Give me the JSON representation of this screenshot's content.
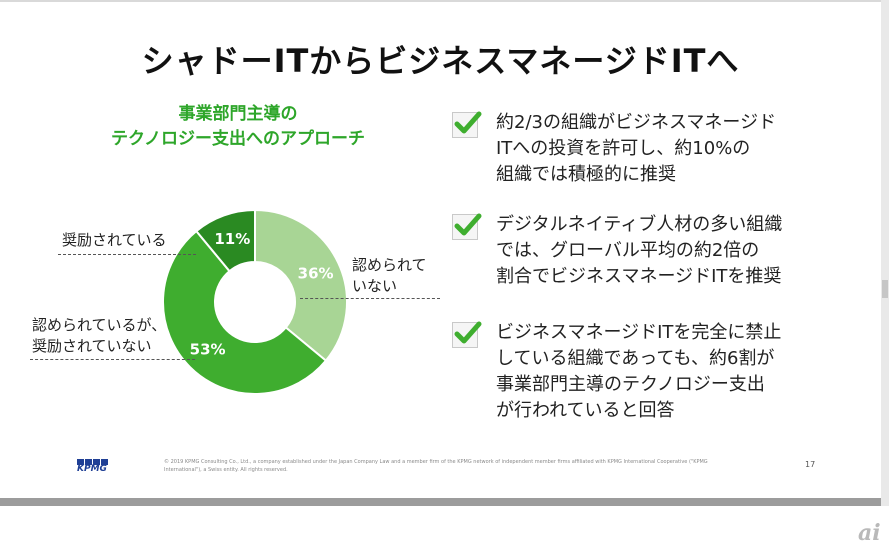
{
  "slide": {
    "title": "シャドーITからビジネスマネージドITへ",
    "chart_title_lines": [
      "事業部門主導の",
      "テクノロジー支出へのアプローチ"
    ]
  },
  "chart_data": {
    "type": "pie",
    "title": "事業部門主導の テクノロジー支出へのアプローチ",
    "donut": true,
    "slices": [
      {
        "name": "認められていない",
        "value": 36,
        "label": "36%",
        "color": "#a8d595"
      },
      {
        "name": "認められているが、奨励されていない",
        "value": 53,
        "label": "53%",
        "color": "#3fad2f"
      },
      {
        "name": "奨励されている",
        "value": 11,
        "label": "11%",
        "color": "#2a8a22"
      }
    ]
  },
  "annotations": {
    "encouraged": "奨励されている",
    "not_allowed_lines": [
      "認められて",
      "いない"
    ],
    "allowed_lines": [
      "認められているが、",
      "奨励されていない"
    ]
  },
  "bullets": [
    {
      "lines": [
        "約2/3の組織がビジネスマネージド",
        "ITへの投資を許可し、約10%の",
        "組織では積極的に推奨"
      ]
    },
    {
      "lines": [
        "デジタルネイティブ人材の多い組織",
        "では、グローバル平均の約2倍の",
        "割合でビジネスマネージドITを推奨"
      ]
    },
    {
      "lines": [
        "ビジネスマネージドITを完全に禁止",
        "している組織であっても、約6割が",
        "事業部門主導のテクノロジー支出",
        "が行われていると回答"
      ]
    }
  ],
  "footer": {
    "logo_text": "KPMG",
    "copyright_lines": [
      "© 2019 KPMG Consulting Co., Ltd., a company established under the Japan Company Law and a member firm of the KPMG network of independent member firms affiliated with KPMG International Cooperative (\"KPMG",
      "International\"), a Swiss entity. All rights reserved."
    ],
    "page_number": "17"
  },
  "watermark": "ai",
  "colors": {
    "title_green": "#2ea62a",
    "check_green": "#3fae2f",
    "kpmg_blue": "#1f3f95"
  }
}
